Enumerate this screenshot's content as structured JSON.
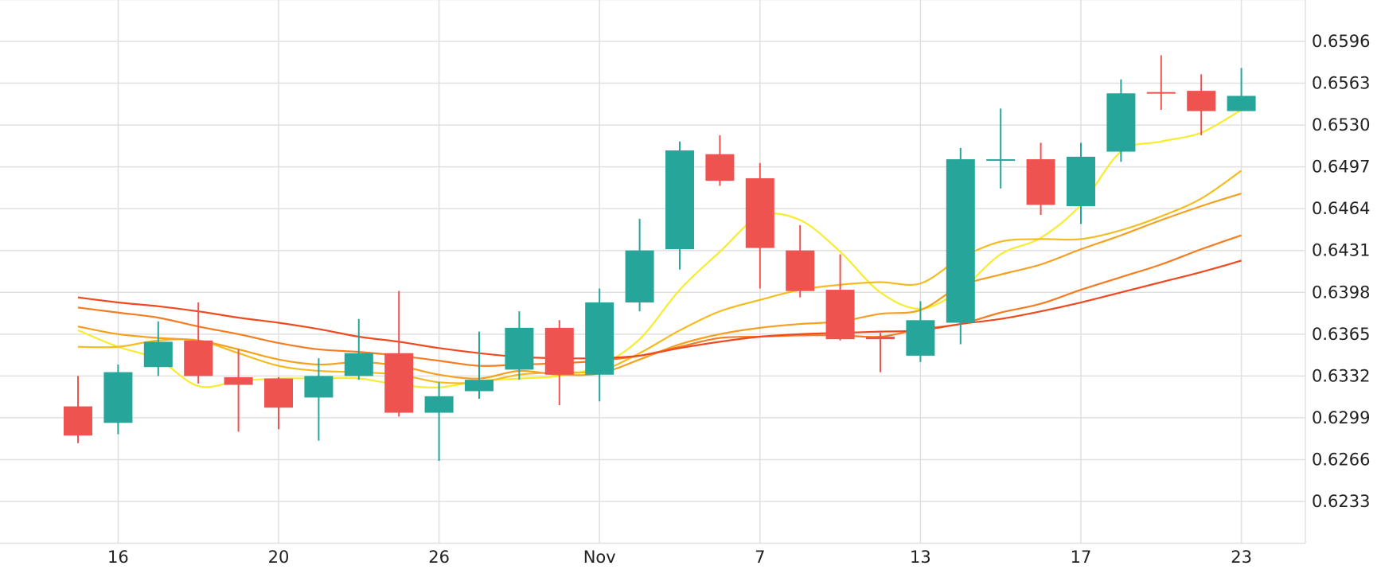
{
  "chart_data": {
    "type": "candlestick",
    "x_tick_labels": [
      "16",
      "20",
      "26",
      "Nov",
      "7",
      "13",
      "17",
      "23"
    ],
    "y_tick_labels": [
      "0.6596",
      "0.6563",
      "0.6530",
      "0.6497",
      "0.6464",
      "0.6431",
      "0.6398",
      "0.6365",
      "0.6332",
      "0.6299",
      "0.6266",
      "0.6233"
    ],
    "ylim": [
      0.62,
      0.662
    ],
    "grid": true,
    "candles": [
      {
        "o": 0.6308,
        "h": 0.6332,
        "l": 0.6279,
        "c": 0.6285
      },
      {
        "o": 0.6295,
        "h": 0.6341,
        "l": 0.6286,
        "c": 0.6335
      },
      {
        "o": 0.6339,
        "h": 0.6375,
        "l": 0.6332,
        "c": 0.6359
      },
      {
        "o": 0.636,
        "h": 0.639,
        "l": 0.6326,
        "c": 0.6332
      },
      {
        "o": 0.6331,
        "h": 0.6353,
        "l": 0.6288,
        "c": 0.6325
      },
      {
        "o": 0.633,
        "h": 0.6331,
        "l": 0.629,
        "c": 0.6307
      },
      {
        "o": 0.6315,
        "h": 0.6346,
        "l": 0.6281,
        "c": 0.6332
      },
      {
        "o": 0.6332,
        "h": 0.6377,
        "l": 0.6329,
        "c": 0.635
      },
      {
        "o": 0.635,
        "h": 0.6399,
        "l": 0.63,
        "c": 0.6303
      },
      {
        "o": 0.6303,
        "h": 0.6327,
        "l": 0.6265,
        "c": 0.6316
      },
      {
        "o": 0.632,
        "h": 0.6367,
        "l": 0.6314,
        "c": 0.6329
      },
      {
        "o": 0.6337,
        "h": 0.6383,
        "l": 0.6329,
        "c": 0.637
      },
      {
        "o": 0.637,
        "h": 0.6376,
        "l": 0.6309,
        "c": 0.6333
      },
      {
        "o": 0.6333,
        "h": 0.6401,
        "l": 0.6312,
        "c": 0.639
      },
      {
        "o": 0.639,
        "h": 0.6456,
        "l": 0.6383,
        "c": 0.6431
      },
      {
        "o": 0.6432,
        "h": 0.6517,
        "l": 0.6416,
        "c": 0.651
      },
      {
        "o": 0.6507,
        "h": 0.6522,
        "l": 0.6482,
        "c": 0.6486
      },
      {
        "o": 0.6488,
        "h": 0.65,
        "l": 0.6401,
        "c": 0.6433
      },
      {
        "o": 0.6431,
        "h": 0.6451,
        "l": 0.6394,
        "c": 0.6399
      },
      {
        "o": 0.64,
        "h": 0.6428,
        "l": 0.636,
        "c": 0.6361
      },
      {
        "o": 0.6363,
        "h": 0.6366,
        "l": 0.6335,
        "c": 0.6361
      },
      {
        "o": 0.6348,
        "h": 0.6391,
        "l": 0.6343,
        "c": 0.6376
      },
      {
        "o": 0.6374,
        "h": 0.6512,
        "l": 0.6357,
        "c": 0.6503
      },
      {
        "o": 0.6503,
        "h": 0.6543,
        "l": 0.648,
        "c": 0.6503
      },
      {
        "o": 0.6503,
        "h": 0.6516,
        "l": 0.6459,
        "c": 0.6467
      },
      {
        "o": 0.6466,
        "h": 0.6516,
        "l": 0.6452,
        "c": 0.6505
      },
      {
        "o": 0.6509,
        "h": 0.6566,
        "l": 0.6501,
        "c": 0.6555
      },
      {
        "o": 0.6556,
        "h": 0.6585,
        "l": 0.6542,
        "c": 0.6555
      },
      {
        "o": 0.6557,
        "h": 0.657,
        "l": 0.6522,
        "c": 0.6541
      },
      {
        "o": 0.6541,
        "h": 0.6575,
        "l": 0.6541,
        "c": 0.6553
      }
    ],
    "moving_averages": [
      {
        "color": "#f7ec2e",
        "values": [
          0.6368,
          0.6355,
          0.6345,
          0.6324,
          0.6328,
          0.633,
          0.633,
          0.633,
          0.6325,
          0.6323,
          0.6328,
          0.633,
          0.6332,
          0.634,
          0.6361,
          0.64,
          0.643,
          0.6458,
          0.6455,
          0.643,
          0.6398,
          0.6385,
          0.64,
          0.6428,
          0.6441,
          0.6467,
          0.6509,
          0.6517,
          0.6524,
          0.6542
        ]
      },
      {
        "color": "#f4bc20",
        "values": [
          0.6355,
          0.6355,
          0.636,
          0.636,
          0.635,
          0.634,
          0.6336,
          0.6335,
          0.6333,
          0.6327,
          0.6327,
          0.6333,
          0.6335,
          0.6336,
          0.635,
          0.6368,
          0.6383,
          0.6392,
          0.64,
          0.6404,
          0.6406,
          0.6405,
          0.6425,
          0.6438,
          0.644,
          0.644,
          0.6447,
          0.6458,
          0.6472,
          0.6494
        ]
      },
      {
        "color": "#f5a01f",
        "values": [
          0.6371,
          0.6365,
          0.6362,
          0.636,
          0.6353,
          0.6345,
          0.6341,
          0.6343,
          0.634,
          0.6333,
          0.633,
          0.6336,
          0.6333,
          0.6334,
          0.6345,
          0.6357,
          0.6365,
          0.637,
          0.6373,
          0.6375,
          0.6381,
          0.6384,
          0.6403,
          0.6412,
          0.642,
          0.6432,
          0.6443,
          0.6455,
          0.6466,
          0.6476
        ]
      },
      {
        "color": "#f57c21",
        "values": [
          0.6386,
          0.6382,
          0.6378,
          0.6371,
          0.6365,
          0.6358,
          0.6353,
          0.6351,
          0.6348,
          0.6344,
          0.634,
          0.6341,
          0.6342,
          0.6344,
          0.6348,
          0.6355,
          0.6362,
          0.6363,
          0.6364,
          0.6364,
          0.6363,
          0.6369,
          0.6373,
          0.6382,
          0.6389,
          0.64,
          0.641,
          0.642,
          0.6432,
          0.6443
        ]
      },
      {
        "color": "#ef4a1f",
        "values": [
          0.6394,
          0.639,
          0.6387,
          0.6383,
          0.6378,
          0.6374,
          0.6369,
          0.6363,
          0.6359,
          0.6354,
          0.635,
          0.6347,
          0.6346,
          0.6346,
          0.6348,
          0.6354,
          0.6359,
          0.6363,
          0.6365,
          0.6366,
          0.6367,
          0.6368,
          0.6373,
          0.6377,
          0.6383,
          0.639,
          0.6398,
          0.6406,
          0.6414,
          0.6423
        ]
      }
    ],
    "colors": {
      "up": "#26a69a",
      "down": "#ef5350",
      "grid": "#e0e0e0",
      "axis_text": "#222222"
    }
  }
}
